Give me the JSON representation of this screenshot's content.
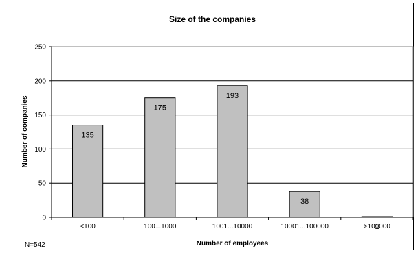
{
  "chart_data": {
    "type": "bar",
    "title": "Size of the companies",
    "xlabel": "Number of employees",
    "ylabel": "Number of companies",
    "categories": [
      "<100",
      "100...1000",
      "1001...10000",
      "10001...100000",
      ">100000"
    ],
    "values": [
      135,
      175,
      193,
      38,
      1
    ],
    "data_labels": [
      "135",
      "175",
      "193",
      "38",
      "1"
    ],
    "ylim": [
      0,
      250
    ],
    "yticks": [
      0,
      50,
      100,
      150,
      200,
      250
    ],
    "grid": true,
    "colors": {
      "bar_fill": "#c0c0c0",
      "bar_stroke": "#000000",
      "grid": "#000000"
    }
  },
  "note": "N=542"
}
